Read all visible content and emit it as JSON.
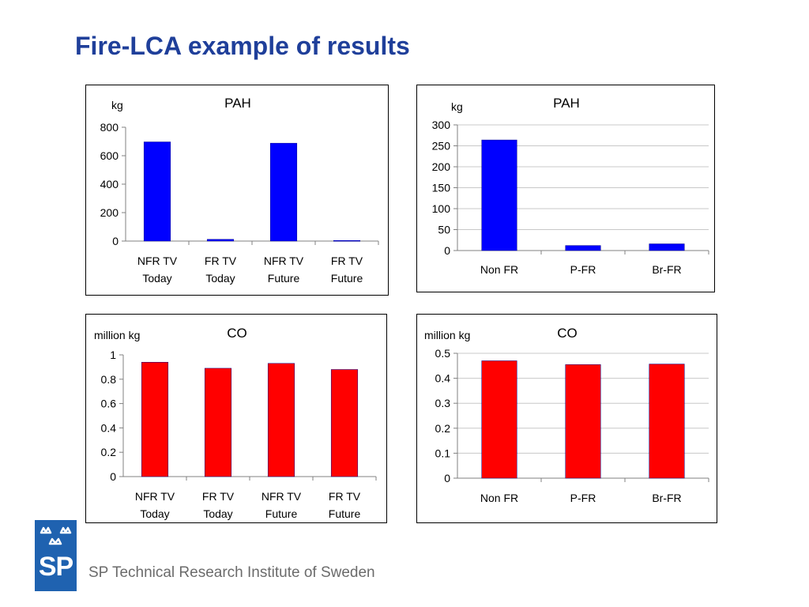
{
  "slide": {
    "title": "Fire-LCA example of results"
  },
  "footer": {
    "logo_text": "SP",
    "org_name": "SP Technical Research Institute of Sweden"
  },
  "colors": {
    "title": "#1f3f9a",
    "pah_bars": "#0000ff",
    "co_bars": "#ff0000",
    "logo": "#1f62b0"
  },
  "chart_data": [
    {
      "type": "bar",
      "title": "PAH",
      "ylabel": "kg",
      "categories": [
        "NFR TV\nToday",
        "FR TV\nToday",
        "NFR TV\nFuture",
        "FR TV\nFuture"
      ],
      "values": [
        697,
        12,
        688,
        4
      ],
      "ylim": [
        0,
        800
      ],
      "yticks": [
        0,
        200,
        400,
        600,
        800
      ],
      "ytick_labels": [
        "0",
        "200",
        "400",
        "600",
        "800"
      ],
      "grid": false,
      "color": "#0000ff"
    },
    {
      "type": "bar",
      "title": "PAH",
      "ylabel": "kg",
      "categories": [
        "Non FR",
        "P-FR",
        "Br-FR"
      ],
      "values": [
        264,
        12,
        16
      ],
      "ylim": [
        0,
        300
      ],
      "yticks": [
        0,
        50,
        100,
        150,
        200,
        250,
        300
      ],
      "ytick_labels": [
        "0",
        "50",
        "100",
        "150",
        "200",
        "250",
        "300"
      ],
      "grid": true,
      "color": "#0000ff"
    },
    {
      "type": "bar",
      "title": "CO",
      "ylabel": "million kg",
      "categories": [
        "NFR TV\nToday",
        "FR TV\nToday",
        "NFR TV\nFuture",
        "FR TV\nFuture"
      ],
      "values": [
        0.94,
        0.89,
        0.93,
        0.88
      ],
      "ylim": [
        0,
        1
      ],
      "yticks": [
        0,
        0.2,
        0.4,
        0.6,
        0.8,
        1
      ],
      "ytick_labels": [
        "0",
        "0.2",
        "0.4",
        "0.6",
        "0.8",
        "1"
      ],
      "grid": false,
      "color": "#ff0000"
    },
    {
      "type": "bar",
      "title": "CO",
      "ylabel": "million kg",
      "categories": [
        "Non FR",
        "P-FR",
        "Br-FR"
      ],
      "values": [
        0.47,
        0.455,
        0.457
      ],
      "ylim": [
        0,
        0.5
      ],
      "yticks": [
        0,
        0.1,
        0.2,
        0.3,
        0.4,
        0.5
      ],
      "ytick_labels": [
        "0",
        "0.1",
        "0.2",
        "0.3",
        "0.4",
        "0.5"
      ],
      "grid": true,
      "color": "#ff0000"
    }
  ]
}
